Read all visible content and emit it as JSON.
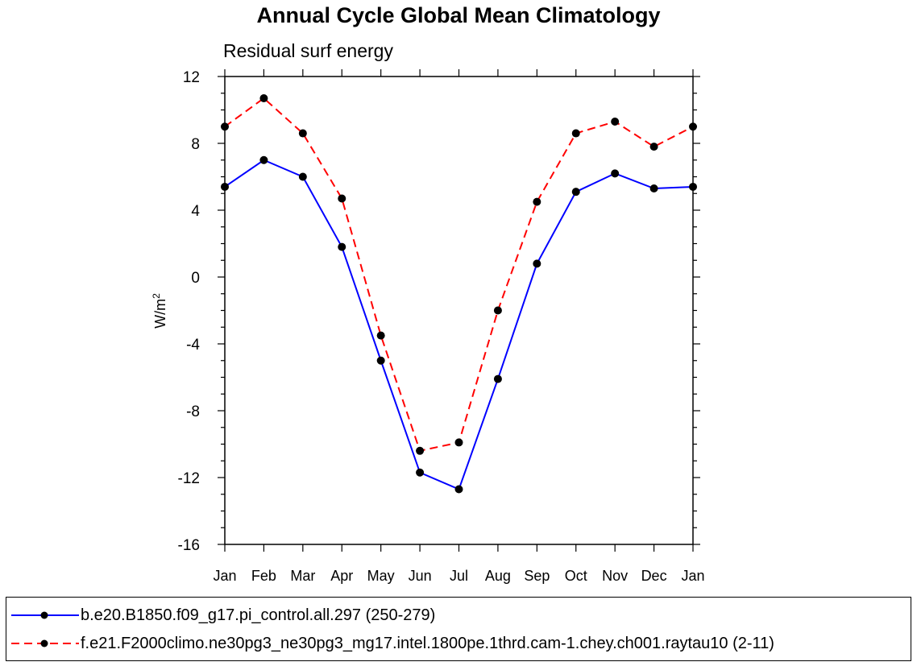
{
  "chart_data": {
    "type": "line",
    "title": "Annual Cycle Global Mean Climatology",
    "subtitle": "Residual surf energy",
    "xlabel": "",
    "ylabel": "W/m",
    "ylabel_superscript": "2",
    "categories": [
      "Jan",
      "Feb",
      "Mar",
      "Apr",
      "May",
      "Jun",
      "Jul",
      "Aug",
      "Sep",
      "Oct",
      "Nov",
      "Dec",
      "Jan"
    ],
    "ylim": [
      -16,
      12
    ],
    "yticks": [
      12,
      8,
      4,
      0,
      -4,
      -8,
      -12,
      -16
    ],
    "grid": false,
    "legend_placement": "bottom",
    "series": [
      {
        "name": "b.e20.B1850.f09_g17.pi_control.all.297 (250-279)",
        "color": "#0000ff",
        "style": "solid",
        "values": [
          5.4,
          7.0,
          6.0,
          1.8,
          -5.0,
          -11.7,
          -12.7,
          -6.1,
          0.8,
          5.1,
          6.2,
          5.3,
          5.4
        ]
      },
      {
        "name": "f.e21.F2000climo.ne30pg3_ne30pg3_mg17.intel.1800pe.1thrd.cam-1.chey.ch001.raytau10 (2-11)",
        "color": "#ff0000",
        "style": "dashed",
        "values": [
          9.0,
          10.7,
          8.6,
          4.7,
          -3.5,
          -10.4,
          -9.9,
          -2.0,
          4.5,
          8.6,
          9.3,
          7.8,
          9.0
        ]
      }
    ]
  }
}
